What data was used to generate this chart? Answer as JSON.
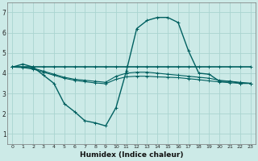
{
  "background_color": "#cceae7",
  "grid_color": "#aad4d0",
  "line_color": "#006060",
  "xlabel": "Humidex (Indice chaleur)",
  "xlim": [
    -0.5,
    23.5
  ],
  "ylim": [
    0.5,
    7.5
  ],
  "yticks": [
    1,
    2,
    3,
    4,
    5,
    6,
    7
  ],
  "xticks": [
    0,
    1,
    2,
    3,
    4,
    5,
    6,
    7,
    8,
    9,
    10,
    11,
    12,
    13,
    14,
    15,
    16,
    17,
    18,
    19,
    20,
    21,
    22,
    23
  ],
  "series": [
    {
      "x": [
        0,
        1,
        2,
        3,
        4,
        5,
        6,
        7,
        8,
        9,
        10,
        11,
        12,
        13,
        14,
        15,
        16,
        17,
        18,
        19,
        20,
        21,
        22,
        23
      ],
      "y": [
        4.3,
        4.45,
        4.3,
        3.9,
        3.5,
        2.5,
        2.1,
        1.65,
        1.55,
        1.4,
        2.3,
        4.1,
        6.2,
        6.6,
        6.75,
        6.75,
        6.5,
        5.1,
        4.0,
        3.95,
        3.6,
        3.6,
        3.5,
        3.5
      ]
    },
    {
      "x": [
        0,
        1,
        2,
        3,
        4,
        5,
        6,
        7,
        8,
        9,
        10,
        11,
        12,
        13,
        14,
        15,
        16,
        17,
        18,
        19,
        20,
        21,
        22,
        23
      ],
      "y": [
        4.3,
        4.3,
        4.3,
        4.3,
        4.3,
        4.3,
        4.3,
        4.3,
        4.3,
        4.3,
        4.3,
        4.3,
        4.3,
        4.3,
        4.3,
        4.3,
        4.3,
        4.3,
        4.3,
        4.3,
        4.3,
        4.3,
        4.3,
        4.3
      ]
    },
    {
      "x": [
        0,
        1,
        2,
        3,
        4,
        5,
        6,
        7,
        8,
        9,
        10,
        11,
        12,
        13,
        14,
        15,
        16,
        17,
        18,
        19,
        20,
        21,
        22,
        23
      ],
      "y": [
        4.3,
        4.3,
        4.25,
        4.1,
        3.95,
        3.8,
        3.7,
        3.65,
        3.6,
        3.55,
        3.85,
        4.0,
        4.05,
        4.05,
        4.0,
        3.95,
        3.9,
        3.85,
        3.8,
        3.75,
        3.65,
        3.6,
        3.55,
        3.5
      ]
    },
    {
      "x": [
        0,
        1,
        2,
        3,
        4,
        5,
        6,
        7,
        8,
        9,
        10,
        11,
        12,
        13,
        14,
        15,
        16,
        17,
        18,
        19,
        20,
        21,
        22,
        23
      ],
      "y": [
        4.3,
        4.28,
        4.2,
        4.05,
        3.9,
        3.75,
        3.65,
        3.58,
        3.52,
        3.48,
        3.7,
        3.82,
        3.85,
        3.85,
        3.82,
        3.8,
        3.78,
        3.73,
        3.68,
        3.62,
        3.57,
        3.53,
        3.5,
        3.5
      ]
    }
  ]
}
